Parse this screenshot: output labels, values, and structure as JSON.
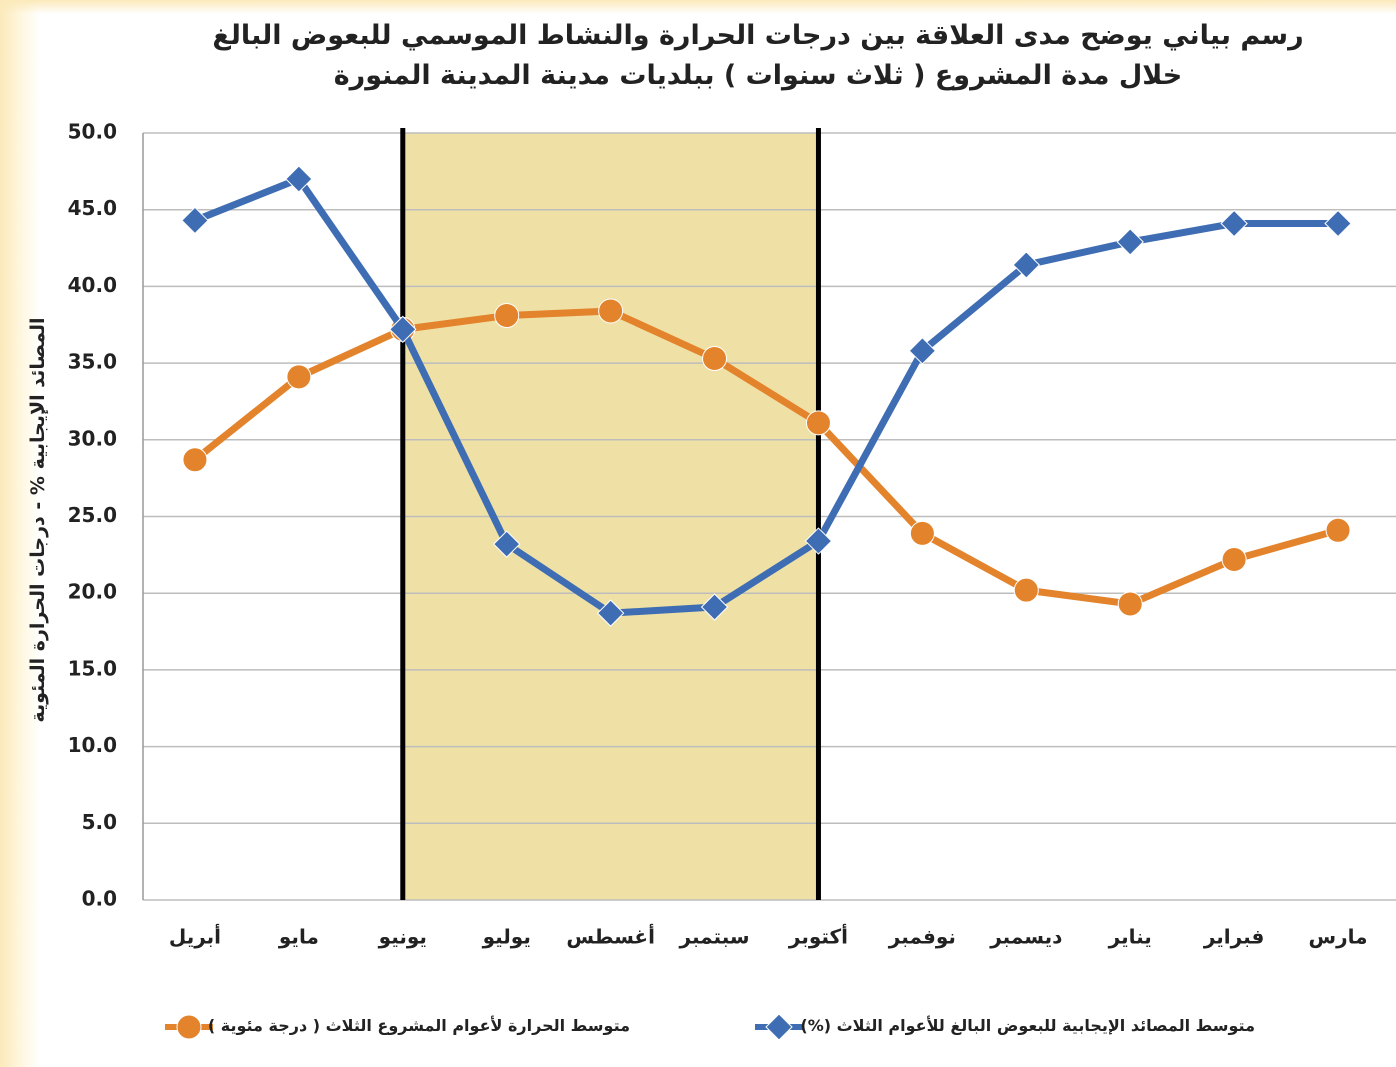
{
  "chart_data": {
    "type": "line",
    "title": [
      "رسم بياني يوضح مدى العلاقة بين درجات الحرارة والنشاط الموسمي للبعوض البالغ",
      "خلال مدة المشروع ( ثلاث سنوات ) ببلديات مدينة المدينة المنورة"
    ],
    "y_label": "المصائد الإيجابية % - درجات الحرارة المئوية",
    "categories": [
      "أبريل",
      "مايو",
      "يونيو",
      "يوليو",
      "أغسطس",
      "سبتمبر",
      "أكتوبر",
      "نوفمبر",
      "ديسمبر",
      "يناير",
      "فبراير",
      "مارس"
    ],
    "series": [
      {
        "name": "متوسط المصائد الإيجابية للبعوض البالغ للأعوام الثلاث (%)",
        "color": "#3f6db3",
        "marker": "diamond",
        "values": [
          44.3,
          47.0,
          37.2,
          23.2,
          18.7,
          19.1,
          23.4,
          35.8,
          41.4,
          42.9,
          44.1,
          44.1
        ]
      },
      {
        "name": "متوسط الحرارة لأعوام المشروع الثلاث ( درجة مئوية )",
        "color": "#e3832c",
        "marker": "circle",
        "values": [
          28.7,
          34.1,
          37.2,
          38.1,
          38.4,
          35.3,
          31.1,
          23.9,
          20.2,
          19.3,
          22.2,
          24.1
        ]
      }
    ],
    "highlight_categories": [
      2,
      6
    ],
    "ylim": [
      0,
      50
    ],
    "yticks": [
      {
        "value": 0,
        "label": "0.0"
      },
      {
        "value": 5,
        "label": "5.0"
      },
      {
        "value": 10,
        "label": "10.0"
      },
      {
        "value": 15,
        "label": "15.0"
      },
      {
        "value": 20,
        "label": "20.0"
      },
      {
        "value": 25,
        "label": "25.0"
      },
      {
        "value": 30,
        "label": "30.0"
      },
      {
        "value": 35,
        "label": "35.0"
      },
      {
        "value": 40,
        "label": "40.0"
      },
      {
        "value": 45,
        "label": "45.0"
      },
      {
        "value": 50,
        "label": "50.0"
      }
    ],
    "grid": true,
    "legend": "bottom"
  }
}
